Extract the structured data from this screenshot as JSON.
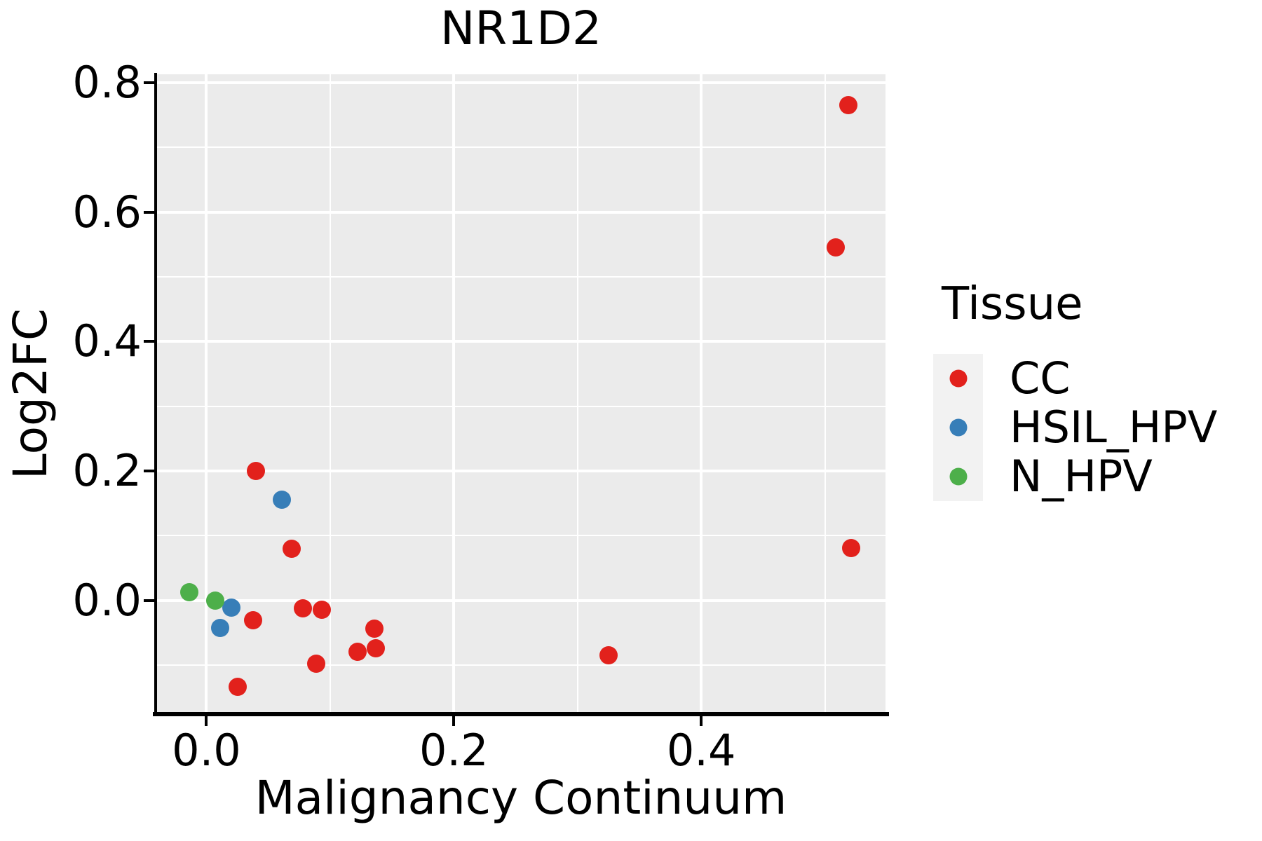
{
  "title": "NR1D2",
  "axes": {
    "x": {
      "label": "Malignancy Continuum",
      "ticks": [
        0.0,
        0.2,
        0.4
      ],
      "tick_labels": [
        "0.0",
        "0.2",
        "0.4"
      ],
      "minor_ticks": [
        0.1,
        0.3,
        0.5
      ],
      "range": [
        -0.0405,
        0.549
      ]
    },
    "y": {
      "label": "Log2FC",
      "ticks": [
        0.0,
        0.2,
        0.4,
        0.6,
        0.8
      ],
      "tick_labels": [
        "0.0",
        "0.2",
        "0.4",
        "0.6",
        "0.8"
      ],
      "minor_ticks": [
        -0.1,
        0.1,
        0.3,
        0.5,
        0.7
      ],
      "range": [
        -0.176,
        0.813
      ]
    }
  },
  "legend": {
    "title": "Tissue",
    "items": [
      {
        "label": "CC",
        "color": "#E2211C"
      },
      {
        "label": "HSIL_HPV",
        "color": "#377EB8"
      },
      {
        "label": "N_HPV",
        "color": "#4DAF4A"
      }
    ]
  },
  "colors": {
    "panel_bg": "#EBEBEB",
    "grid": "#FFFFFF",
    "axis": "#000000",
    "legend_key_bg": "#F2F2F2",
    "text": "#000000"
  },
  "chart_data": {
    "type": "scatter",
    "title": "NR1D2",
    "xlabel": "Malignancy Continuum",
    "ylabel": "Log2FC",
    "xlim": [
      -0.0405,
      0.549
    ],
    "ylim": [
      -0.176,
      0.813
    ],
    "grid": true,
    "legend_position": "right",
    "series": [
      {
        "name": "CC",
        "color": "#E2211C",
        "points": [
          [
            0.04,
            0.2
          ],
          [
            0.069,
            0.08
          ],
          [
            0.025,
            -0.134
          ],
          [
            0.038,
            -0.031
          ],
          [
            0.078,
            -0.012
          ],
          [
            0.093,
            -0.015
          ],
          [
            0.089,
            -0.098
          ],
          [
            0.122,
            -0.08
          ],
          [
            0.136,
            -0.044
          ],
          [
            0.137,
            -0.074
          ],
          [
            0.325,
            -0.085
          ],
          [
            0.509,
            0.545
          ],
          [
            0.519,
            0.765
          ],
          [
            0.521,
            0.081
          ]
        ]
      },
      {
        "name": "HSIL_HPV",
        "color": "#377EB8",
        "points": [
          [
            0.011,
            -0.043
          ],
          [
            0.02,
            -0.011
          ],
          [
            0.061,
            0.156
          ]
        ]
      },
      {
        "name": "N_HPV",
        "color": "#4DAF4A",
        "points": [
          [
            -0.014,
            0.012
          ],
          [
            0.007,
            0.0
          ]
        ]
      }
    ]
  }
}
